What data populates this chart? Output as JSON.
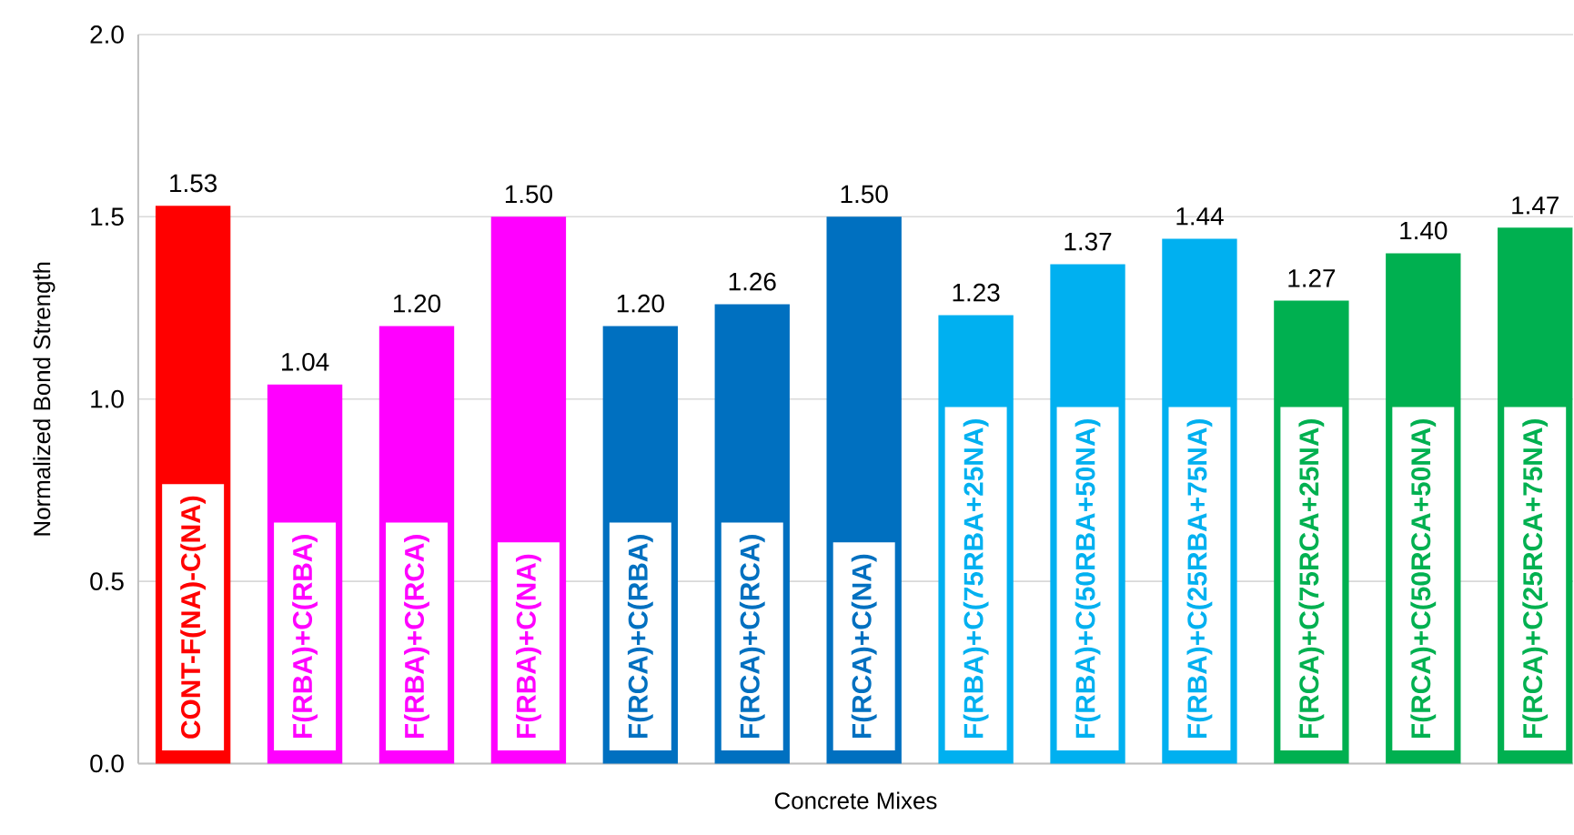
{
  "chart_data": {
    "type": "bar",
    "xlabel": "Concrete Mixes",
    "ylabel": "Normalized Bond Strength",
    "categories": [
      "CONT-F(NA)-C(NA)",
      "F(RBA)+C(RBA)",
      "F(RBA)+C(RCA)",
      "F(RBA)+C(NA)",
      "F(RCA)+C(RBA)",
      "F(RCA)+C(RCA)",
      "F(RCA)+C(NA)",
      "F(RBA)+C(75RBA+25NA)",
      "F(RBA)+C(50RBA+50NA)",
      "F(RBA)+C(25RBA+75NA)",
      "F(RCA)+C(75RCA+25NA)",
      "F(RCA)+C(50RCA+50NA)",
      "F(RCA)+C(25RCA+75NA)"
    ],
    "values": [
      1.53,
      1.04,
      1.2,
      1.5,
      1.2,
      1.26,
      1.5,
      1.23,
      1.37,
      1.44,
      1.27,
      1.4,
      1.47
    ],
    "value_labels": [
      "1.53",
      "1.04",
      "1.20",
      "1.50",
      "1.20",
      "1.26",
      "1.50",
      "1.23",
      "1.37",
      "1.44",
      "1.27",
      "1.40",
      "1.47"
    ],
    "colors": [
      "#ff0000",
      "#ff00ff",
      "#ff00ff",
      "#ff00ff",
      "#0070c0",
      "#0070c0",
      "#0070c0",
      "#00b0f0",
      "#00b0f0",
      "#00b0f0",
      "#00b050",
      "#00b050",
      "#00b050"
    ],
    "ylim": [
      0,
      2.0
    ],
    "yticks": [
      {
        "value": 0,
        "label": "0.0"
      },
      {
        "value": 0.5,
        "label": "0.5"
      },
      {
        "value": 1.0,
        "label": "1.0"
      },
      {
        "value": 1.5,
        "label": "1.5"
      },
      {
        "value": 2.0,
        "label": "2.0"
      }
    ],
    "grid": "y",
    "tick_labels": "y"
  }
}
